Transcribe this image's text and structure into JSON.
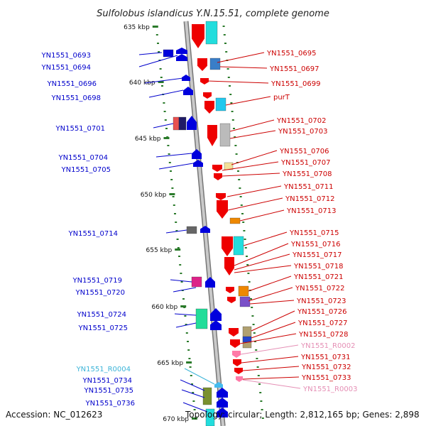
{
  "header": {
    "title": "Sulfolobus islandicus Y.N.15.51, complete genome"
  },
  "footer": {
    "accession": "Accession: NC_012623",
    "topology": "Topology: circular; Length: 2,812,165 bp; Genes: 2,898"
  },
  "colors": {
    "backbone": "#9a9a9a",
    "tick": "#2a7a2a",
    "forward_label": "#cc0000",
    "reverse_label": "#0000cc",
    "rna_forward_label": "#e58fb5",
    "rna_reverse_label": "#3cb4d8"
  },
  "chart_data": {
    "type": "genome-map",
    "ticks": [
      "635 kbp",
      "640 kbp",
      "645 kbp",
      "650 kbp",
      "655 kbp",
      "660 kbp",
      "665 kbp",
      "670 kbp"
    ],
    "reverse_strand_labels": [
      "YN1551_0693",
      "YN1551_0694",
      "YN1551_0696",
      "YN1551_0698",
      "YN1551_0701",
      "YN1551_0704",
      "YN1551_0705",
      "YN1551_0714",
      "YN1551_0719",
      "YN1551_0720",
      "YN1551_0724",
      "YN1551_0725",
      "YN1551_R0004",
      "YN1551_0734",
      "YN1551_0735",
      "YN1551_0736"
    ],
    "forward_strand_labels": [
      "YN1551_0695",
      "YN1551_0697",
      "YN1551_0699",
      "purT",
      "YN1551_0702",
      "YN1551_0703",
      "YN1551_0706",
      "YN1551_0707",
      "YN1551_0708",
      "YN1551_0711",
      "YN1551_0712",
      "YN1551_0713",
      "YN1551_0715",
      "YN1551_0716",
      "YN1551_0717",
      "YN1551_0718",
      "YN1551_0721",
      "YN1551_0722",
      "YN1551_0723",
      "YN1551_0726",
      "YN1551_0727",
      "YN1551_0728",
      "YN1551_R0002",
      "YN1551_0731",
      "YN1551_0732",
      "YN1551_0733",
      "YN1551_R0003"
    ]
  }
}
